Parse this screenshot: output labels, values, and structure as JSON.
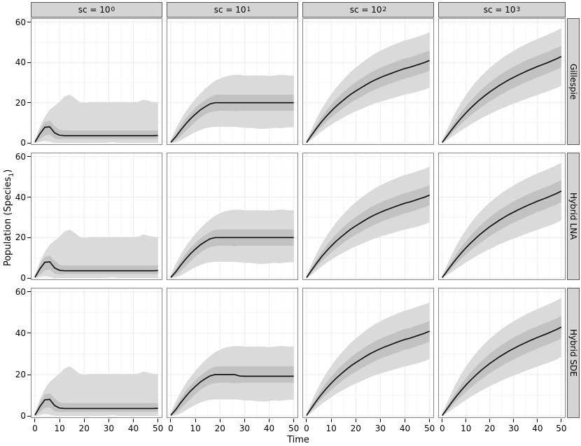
{
  "colors": {
    "line": "#111111",
    "inner_band": "#c2c2c2",
    "outer_band": "#dadada",
    "strip_bg": "#d4d4d4",
    "strip_border": "#595959",
    "panel_border": "#868686",
    "grid_major": "#ececec",
    "grid_minor": "#f6f6f6",
    "background": "#ffffff"
  },
  "chart_data": {
    "type": "area",
    "description": "Faceted mean line with inner/outer ribbons; 4 facet columns (sc scale) x 3 facet rows (simulation method)",
    "xlabel": "Time",
    "ylabel_parts": {
      "pre": "Population (Species",
      "sub": "1",
      "post": ")"
    },
    "x_range": [
      0,
      50
    ],
    "y_range": [
      0,
      60
    ],
    "x_ticks": [
      0,
      10,
      20,
      30,
      40,
      50
    ],
    "y_ticks": [
      0,
      20,
      40,
      60
    ],
    "grid": true,
    "legend": "none",
    "rows": [
      {
        "label": "Gillespie"
      },
      {
        "label": "Hybrid LNA"
      },
      {
        "label": "Hybrid SDE"
      }
    ],
    "x": [
      0,
      2,
      4,
      6,
      8,
      10,
      12,
      14,
      16,
      18,
      20,
      22,
      24,
      26,
      28,
      30,
      32,
      34,
      36,
      38,
      40,
      42,
      44,
      46,
      48,
      50
    ],
    "columns": [
      {
        "strip_prefix": "sc = 10",
        "strip_exponent": "0",
        "mean": [
          0.4,
          4.5,
          7.8,
          8,
          5,
          3.8,
          3.6,
          3.6,
          3.6,
          3.6,
          3.6,
          3.6,
          3.6,
          3.6,
          3.6,
          3.6,
          3.6,
          3.6,
          3.6,
          3.6,
          3.6,
          3.6,
          3.6,
          3.6,
          3.6,
          3.7
        ],
        "inner_hi": [
          0.9,
          6.5,
          10.5,
          11,
          8.5,
          6.5,
          6.2,
          6.2,
          6.2,
          6.2,
          6.2,
          6.2,
          6.2,
          6.2,
          6.2,
          6.2,
          6.2,
          6.2,
          6.2,
          6.2,
          6.2,
          6.2,
          6.2,
          6.2,
          6.2,
          6.3
        ],
        "inner_lo": [
          0,
          1.8,
          3.8,
          4.2,
          2.2,
          1.8,
          2,
          2,
          2,
          2,
          2,
          2,
          2,
          2,
          2,
          2,
          2,
          2,
          2,
          2,
          2,
          2,
          2,
          2,
          2,
          2
        ],
        "outer_hi": [
          1.5,
          8,
          13,
          16.5,
          18.5,
          20.5,
          23,
          24,
          22.5,
          20.5,
          20,
          20.3,
          20.3,
          20.3,
          20.3,
          20.3,
          20.3,
          20.3,
          20.3,
          20.3,
          20.3,
          20.5,
          21.5,
          21,
          20.4,
          20.3
        ],
        "outer_lo": [
          0,
          0.5,
          1,
          0.6,
          0,
          0,
          0,
          0,
          0,
          0,
          0,
          0,
          0,
          0,
          0,
          0.3,
          0.4,
          0,
          0,
          0,
          0,
          0,
          0,
          0,
          0,
          0
        ]
      },
      {
        "strip_prefix": "sc = 10",
        "strip_exponent": "1",
        "mean": [
          0.3,
          3,
          6.3,
          9.3,
          12,
          14.3,
          16.4,
          18,
          19.4,
          20,
          20,
          20,
          20,
          20,
          20,
          20,
          20,
          20,
          20,
          20,
          20,
          20,
          20,
          20,
          20,
          20
        ],
        "inner_hi": [
          0.8,
          4.5,
          8.5,
          12,
          14.8,
          17.3,
          19.5,
          21.3,
          22.8,
          23.8,
          24,
          24,
          24,
          24,
          24,
          24,
          24,
          24,
          24,
          24,
          24,
          24,
          24,
          24,
          24,
          24
        ],
        "inner_lo": [
          0,
          1.4,
          3.4,
          5.8,
          8.2,
          10.5,
          12.6,
          14.2,
          15.3,
          15.8,
          16,
          16,
          16,
          15.8,
          16,
          16,
          16,
          16,
          16,
          16,
          16,
          16,
          16,
          16,
          16,
          16
        ],
        "outer_hi": [
          1.5,
          7,
          11.5,
          15.5,
          18.8,
          21.8,
          24.5,
          27,
          29,
          30.8,
          32,
          33,
          33.5,
          33.8,
          33.8,
          33.5,
          33.5,
          33.5,
          33.5,
          33.5,
          33.3,
          33.5,
          33.8,
          33.8,
          33.5,
          33.5
        ],
        "outer_lo": [
          0,
          0.3,
          1.2,
          2.6,
          4,
          5.4,
          6.4,
          7.3,
          7.8,
          8,
          8,
          8,
          8,
          8,
          7.8,
          7.5,
          7.5,
          7.3,
          7,
          7,
          7.2,
          7.5,
          7.3,
          7.5,
          7.8,
          7.8
        ]
      },
      {
        "strip_prefix": "sc = 10",
        "strip_exponent": "2",
        "mean": [
          0.2,
          3.8,
          7.2,
          10.4,
          13.2,
          15.8,
          18.2,
          20.3,
          22.3,
          24.2,
          25.8,
          27.3,
          28.8,
          30.2,
          31.4,
          32.5,
          33.5,
          34.4,
          35.3,
          36.2,
          37,
          37.6,
          38.4,
          39.2,
          40,
          41
        ],
        "inner_hi": [
          0.7,
          5,
          9,
          12.7,
          16,
          19,
          21.7,
          24.1,
          26.3,
          28.4,
          30.2,
          31.8,
          33.4,
          34.9,
          36.2,
          37.3,
          38.4,
          39.3,
          40.3,
          41.2,
          42,
          42.6,
          43.4,
          44.2,
          45,
          46
        ],
        "inner_lo": [
          0,
          2.6,
          5.4,
          8.1,
          10.4,
          12.6,
          14.7,
          16.5,
          18.3,
          20,
          21.4,
          22.8,
          24.2,
          25.5,
          26.6,
          27.7,
          28.6,
          29.5,
          30.3,
          31.2,
          32,
          32.6,
          33.4,
          34.2,
          35,
          36
        ],
        "outer_hi": [
          1.2,
          6.8,
          12,
          16.6,
          20.6,
          24.2,
          27.4,
          30.3,
          32.9,
          35.4,
          37.5,
          39.4,
          41.3,
          43,
          44.5,
          45.8,
          47,
          48.1,
          49.1,
          50.1,
          51,
          51.6,
          52.4,
          53.2,
          54,
          55
        ],
        "outer_lo": [
          0,
          1.6,
          3.6,
          5.6,
          7.4,
          9,
          10.6,
          11.9,
          13.3,
          14.6,
          15.7,
          16.7,
          17.8,
          18.8,
          19.7,
          20.5,
          21.2,
          21.9,
          22.6,
          23.3,
          24,
          24.5,
          25.1,
          25.8,
          26.5,
          27.5
        ]
      },
      {
        "strip_prefix": "sc = 10",
        "strip_exponent": "3",
        "mean": [
          0.2,
          3.4,
          6.6,
          9.6,
          12.4,
          15,
          17.4,
          19.6,
          21.7,
          23.6,
          25.4,
          27,
          28.6,
          30,
          31.4,
          32.6,
          33.8,
          34.9,
          36,
          37,
          38,
          38.9,
          39.8,
          40.8,
          41.8,
          43
        ],
        "inner_hi": [
          0.7,
          4.6,
          8.4,
          12,
          15.3,
          18.3,
          21.1,
          23.6,
          26,
          28.1,
          30.1,
          31.9,
          33.6,
          35.1,
          36.6,
          37.9,
          39.1,
          40.3,
          41.4,
          42.4,
          43.4,
          44.3,
          45.2,
          46.2,
          47.2,
          48.4
        ],
        "inner_lo": [
          0,
          2.2,
          4.8,
          7.2,
          9.5,
          11.7,
          13.7,
          15.6,
          17.4,
          19.1,
          20.7,
          22.1,
          23.6,
          24.9,
          26.2,
          27.3,
          28.5,
          29.5,
          30.6,
          31.6,
          32.6,
          33.5,
          34.4,
          35.4,
          36.4,
          37.6
        ],
        "outer_hi": [
          1.2,
          6.4,
          11.6,
          16.2,
          20.3,
          23.9,
          27.2,
          30.2,
          32.8,
          35.2,
          37.4,
          39.3,
          41.2,
          42.9,
          44.4,
          45.8,
          47.2,
          48.4,
          49.6,
          50.7,
          51.7,
          52.7,
          53.7,
          54.7,
          55.8,
          57
        ],
        "outer_lo": [
          0,
          1.4,
          3,
          4.6,
          6.2,
          7.8,
          9.2,
          10.6,
          12,
          13.2,
          14.4,
          15.5,
          16.6,
          17.6,
          18.6,
          19.5,
          20.4,
          21.3,
          22.2,
          23,
          23.9,
          24.7,
          25.5,
          26.4,
          27.3,
          28.5
        ]
      }
    ],
    "panel_overrides": {
      "r2c1": {
        "mean": [
          0.3,
          3,
          6.3,
          9.3,
          12,
          14.3,
          16.4,
          18,
          19.4,
          20,
          20,
          20,
          20,
          20,
          19.3,
          19.2,
          19.2,
          19.2,
          19.2,
          19.2,
          19.2,
          19.2,
          19.2,
          19.2,
          19.2,
          19.2
        ]
      }
    }
  }
}
